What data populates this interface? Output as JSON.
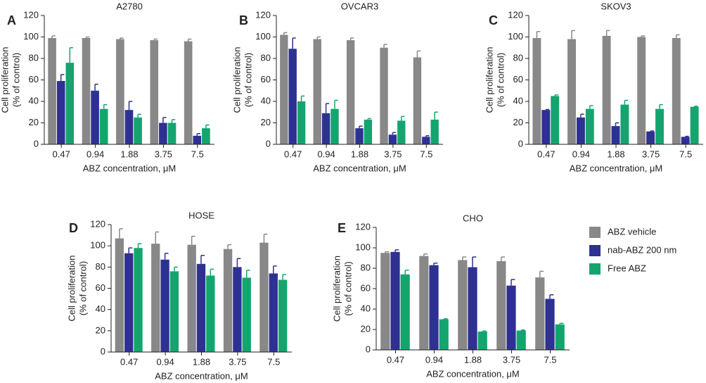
{
  "chart_data": [
    {
      "type": "bar",
      "panel_label": "A",
      "title": "A2780",
      "xlabel": "ABZ concentration, μM",
      "ylabel": [
        "Cell proliferation",
        "(% of control)"
      ],
      "categories": [
        "0.47",
        "0.94",
        "1.88",
        "3.75",
        "7.5"
      ],
      "ylim": [
        0,
        120
      ],
      "yticks": [
        0,
        20,
        40,
        60,
        80,
        100,
        120
      ],
      "series": [
        {
          "color": "#888888",
          "values": [
            99,
            99,
            98,
            97,
            96
          ],
          "errors": [
            2,
            1,
            1,
            1,
            2
          ]
        },
        {
          "color": "#2e3192",
          "values": [
            59,
            50,
            32,
            20,
            8
          ],
          "errors": [
            6,
            6,
            8,
            5,
            2
          ]
        },
        {
          "color": "#14a56f",
          "values": [
            76,
            33,
            25,
            20,
            15
          ],
          "errors": [
            14,
            4,
            3,
            3,
            3
          ]
        }
      ]
    },
    {
      "type": "bar",
      "panel_label": "B",
      "title": "OVCAR3",
      "xlabel": "ABZ concentration, μM",
      "ylabel": [
        "Cell proliferation",
        "(% of control)"
      ],
      "categories": [
        "0.47",
        "0.94",
        "1.88",
        "3.75",
        "7.5"
      ],
      "ylim": [
        0,
        120
      ],
      "yticks": [
        0,
        20,
        40,
        60,
        80,
        100,
        120
      ],
      "series": [
        {
          "color": "#888888",
          "values": [
            102,
            98,
            97,
            90,
            81
          ],
          "errors": [
            2,
            2,
            2,
            3,
            6
          ]
        },
        {
          "color": "#2e3192",
          "values": [
            89,
            29,
            15,
            9,
            7
          ],
          "errors": [
            10,
            9,
            2,
            2,
            1
          ]
        },
        {
          "color": "#14a56f",
          "values": [
            40,
            33,
            23,
            22,
            23
          ],
          "errors": [
            5,
            8,
            1,
            4,
            7
          ]
        }
      ]
    },
    {
      "type": "bar",
      "panel_label": "C",
      "title": "SKOV3",
      "xlabel": "ABZ concentration, μM",
      "ylabel": [
        "Cell proliferation",
        "(% of control)"
      ],
      "categories": [
        "0.47",
        "0.94",
        "1.88",
        "3.75",
        "7.5"
      ],
      "ylim": [
        0,
        120
      ],
      "yticks": [
        0,
        20,
        40,
        60,
        80,
        100,
        120
      ],
      "series": [
        {
          "color": "#888888",
          "values": [
            99,
            98,
            101,
            100,
            99
          ],
          "errors": [
            6,
            8,
            5,
            1,
            3
          ]
        },
        {
          "color": "#2e3192",
          "values": [
            32,
            25,
            17,
            12,
            7
          ],
          "errors": [
            0.5,
            3,
            3,
            0.5,
            0.5
          ]
        },
        {
          "color": "#14a56f",
          "values": [
            45,
            33,
            37,
            33,
            35
          ],
          "errors": [
            1,
            3,
            4,
            4,
            0.5
          ]
        }
      ]
    },
    {
      "type": "bar",
      "panel_label": "D",
      "title": "HOSE",
      "xlabel": "ABZ concentration, μM",
      "ylabel": [
        "Cell proliferation",
        "(% of control)"
      ],
      "categories": [
        "0.47",
        "0.94",
        "1.88",
        "3.75",
        "7.5"
      ],
      "ylim": [
        0,
        120
      ],
      "yticks": [
        0,
        20,
        40,
        60,
        80,
        100,
        120
      ],
      "series": [
        {
          "color": "#888888",
          "values": [
            107,
            102,
            101,
            97,
            103
          ],
          "errors": [
            9,
            11,
            8,
            4,
            8
          ]
        },
        {
          "color": "#2e3192",
          "values": [
            93,
            87,
            83,
            80,
            74
          ],
          "errors": [
            5,
            6,
            8,
            8,
            7
          ]
        },
        {
          "color": "#14a56f",
          "values": [
            98,
            76,
            72,
            70,
            68
          ],
          "errors": [
            4,
            4,
            6,
            7,
            5
          ]
        }
      ]
    },
    {
      "type": "bar",
      "panel_label": "E",
      "title": "CHO",
      "xlabel": "ABZ concentration, μM",
      "ylabel": [
        "Cell proliferation",
        "(% of control)"
      ],
      "categories": [
        "0.47",
        "0.94",
        "1.88",
        "3.75",
        "7.5"
      ],
      "ylim": [
        0,
        120
      ],
      "yticks": [
        0,
        20,
        40,
        60,
        80,
        100,
        120
      ],
      "series": [
        {
          "name": "ABZ vehicle",
          "color": "#888888",
          "values": [
            95,
            92,
            88,
            87,
            71
          ],
          "errors": [
            1,
            2,
            3,
            4,
            6
          ]
        },
        {
          "name": "nab-ABZ 200 nm",
          "color": "#2e3192",
          "values": [
            96,
            83,
            81,
            63,
            50
          ],
          "errors": [
            2,
            2,
            10,
            6,
            4
          ]
        },
        {
          "name": "Free ABZ",
          "color": "#14a56f",
          "values": [
            74,
            30,
            18,
            19,
            25
          ],
          "errors": [
            4,
            0.5,
            0.5,
            0.5,
            1
          ]
        }
      ]
    }
  ]
}
